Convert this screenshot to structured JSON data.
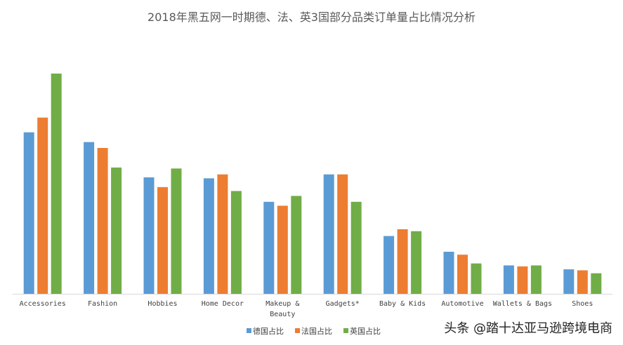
{
  "chart_data": {
    "type": "bar",
    "title": "2018年黑五网一时期德、法、英3国部分品类订单量占比情况分析",
    "categories": [
      [
        "Accessories"
      ],
      [
        "Fashion"
      ],
      [
        "Hobbies"
      ],
      [
        "Home Decor"
      ],
      [
        "Makeup &",
        "Beauty"
      ],
      [
        "Gadgets*"
      ],
      [
        "Baby & Kids"
      ],
      [
        "Automotive"
      ],
      [
        "Wallets & Bags"
      ],
      [
        "Shoes"
      ]
    ],
    "series": [
      {
        "name": "德国占比",
        "color": "#5B9BD5",
        "values": [
          16.5,
          15.5,
          11.9,
          11.8,
          9.4,
          12.2,
          5.9,
          4.3,
          2.9,
          2.5
        ]
      },
      {
        "name": "法国占比",
        "color": "#ED7D31",
        "values": [
          18.0,
          14.9,
          10.9,
          12.2,
          9.0,
          12.2,
          6.6,
          4.0,
          2.8,
          2.4
        ]
      },
      {
        "name": "英国占比",
        "color": "#70AD47",
        "values": [
          22.5,
          12.9,
          12.8,
          10.5,
          10.0,
          9.4,
          6.4,
          3.1,
          2.9,
          2.1
        ]
      }
    ],
    "ylim": [
      0,
      25
    ],
    "grid": false,
    "legend_position": "bottom"
  },
  "watermark": "头条 @踏十达亚马逊跨境电商"
}
